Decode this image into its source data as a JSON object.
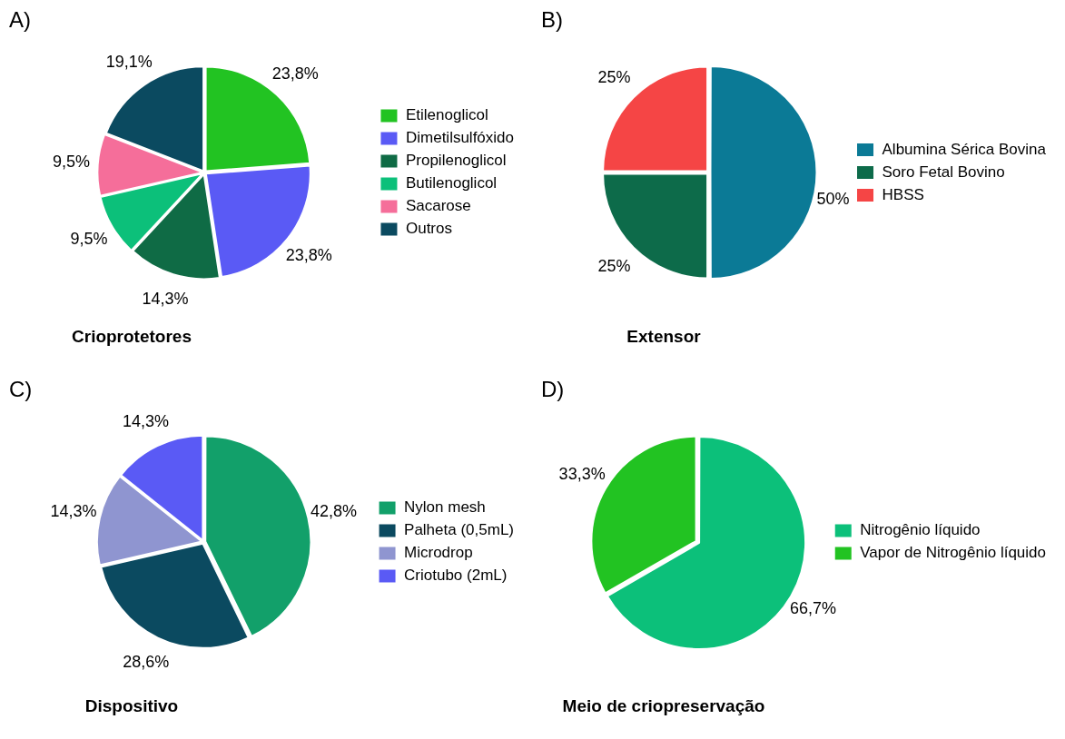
{
  "chart_data": [
    {
      "type": "pie",
      "title": "Crioprotetores",
      "annotations": [
        "A)"
      ],
      "categories": [
        "Etilenoglicol",
        "Dimetilsulfóxido",
        "Propilenoglicol",
        "Butilenoglicol",
        "Sacarose",
        "Outros"
      ],
      "values": [
        23.8,
        23.8,
        14.3,
        9.5,
        9.5,
        19.1
      ],
      "value_labels": [
        "23,8%",
        "23,8%",
        "14,3%",
        "9,5%",
        "9,5%",
        "19,1%"
      ],
      "colors": [
        "#22c322",
        "#5a5af5",
        "#0f6b45",
        "#0cc07a",
        "#f56e9a",
        "#0b4a60"
      ],
      "legend": "right"
    },
    {
      "type": "pie",
      "title": "Extensor",
      "annotations": [
        "B)"
      ],
      "categories": [
        "Albumina Sérica Bovina",
        "Soro Fetal Bovino",
        "HBSS"
      ],
      "values": [
        50,
        25,
        25
      ],
      "value_labels": [
        "50%",
        "25%",
        "25%"
      ],
      "colors": [
        "#0b7a96",
        "#0d6b4a",
        "#f54545"
      ],
      "legend": "right"
    },
    {
      "type": "pie",
      "title": "Dispositivo",
      "annotations": [
        "C)"
      ],
      "categories": [
        "Nylon mesh",
        "Palheta (0,5mL)",
        "Microdrop",
        "Criotubo (2mL)"
      ],
      "values": [
        42.8,
        28.6,
        14.3,
        14.3
      ],
      "value_labels": [
        "42,8%",
        "28,6%",
        "14,3%",
        "14,3%"
      ],
      "colors": [
        "#12a06a",
        "#0b4a60",
        "#8f95d0",
        "#5a5af5"
      ],
      "legend": "right"
    },
    {
      "type": "pie",
      "title": "Meio de criopreservação",
      "annotations": [
        "D)"
      ],
      "categories": [
        "Nitrogênio líquido",
        "Vapor de Nitrogênio líquido"
      ],
      "values": [
        66.7,
        33.3
      ],
      "value_labels": [
        "66,7%",
        "33,3%"
      ],
      "colors": [
        "#0cc07a",
        "#22c322"
      ],
      "legend": "right"
    }
  ]
}
